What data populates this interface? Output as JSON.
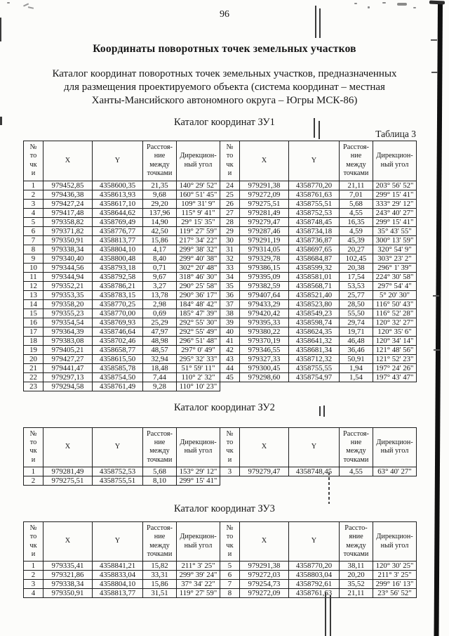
{
  "page": {
    "number": "96"
  },
  "title": "Координаты поворотных точек земельных участков",
  "intro": {
    "lines": [
      "Каталог координат поворотных точек земельных участков, предназначенных",
      "для размещения проектируемого объекта (система координат – местная",
      "Ханты-Мансийского автономного округа – Югры МСК-86)"
    ]
  },
  "tables": [
    {
      "caption": "Каталог координат ЗУ1",
      "label": "Таблица 3",
      "headers": [
        "№\nто\nчк\nи",
        "X",
        "Y",
        "Расстоя-\nние\nмежду\nточками",
        "Дирекцион-\nный угол",
        "№\nто\nчк\nи",
        "X",
        "Y",
        "Расстоя-\nние\nмежду\nточками",
        "Дирекцион-\nный угол"
      ],
      "rows": [
        [
          "1",
          "979452,85",
          "4358600,35",
          "21,35",
          "140° 29' 52\"",
          "24",
          "979291,38",
          "4358770,20",
          "21,11",
          "203° 56' 52\""
        ],
        [
          "2",
          "979436,38",
          "4358613,93",
          "9,68",
          "160° 51' 45\"",
          "25",
          "979272,09",
          "4358761,63",
          "7,01",
          "299° 15' 41\""
        ],
        [
          "3",
          "979427,24",
          "4358617,10",
          "29,20",
          "109° 31' 9\"",
          "26",
          "979275,51",
          "4358755,51",
          "5,68",
          "333° 29' 12\""
        ],
        [
          "4",
          "979417,48",
          "4358644,62",
          "137,96",
          "115° 9' 41\"",
          "27",
          "979281,49",
          "4358752,53",
          "4,55",
          "243° 40' 27\""
        ],
        [
          "5",
          "979358,82",
          "4358769,49",
          "14,90",
          "29° 15' 35\"",
          "28",
          "979279,47",
          "4358748,45",
          "16,35",
          "299° 15' 41\""
        ],
        [
          "6",
          "979371,82",
          "4358776,77",
          "42,50",
          "119° 27' 59\"",
          "29",
          "979287,46",
          "4358734,18",
          "4,59",
          "35° 43' 55\""
        ],
        [
          "7",
          "979350,91",
          "4358813,77",
          "15,86",
          "217° 34' 22\"",
          "30",
          "979291,19",
          "4358736,87",
          "45,39",
          "300° 13' 59\""
        ],
        [
          "8",
          "979338,34",
          "4358804,10",
          "4,17",
          "299° 38' 32\"",
          "31",
          "979314,05",
          "4358697,65",
          "20,27",
          "320° 54' 9\""
        ],
        [
          "9",
          "979340,40",
          "4358800,48",
          "8,40",
          "299° 40' 38\"",
          "32",
          "979329,78",
          "4358684,87",
          "102,45",
          "303° 23' 2\""
        ],
        [
          "10",
          "979344,56",
          "4358793,18",
          "0,71",
          "302° 20' 48\"",
          "33",
          "979386,15",
          "4358599,32",
          "20,38",
          "296° 1' 39\""
        ],
        [
          "11",
          "979344,94",
          "4358792,58",
          "9,67",
          "318° 46' 30\"",
          "34",
          "979395,09",
          "4358581,01",
          "17,54",
          "224° 30' 58\""
        ],
        [
          "12",
          "979352,21",
          "4358786,21",
          "3,27",
          "290° 25' 58\"",
          "35",
          "979382,59",
          "4358568,71",
          "53,53",
          "297° 54' 4\""
        ],
        [
          "13",
          "979353,35",
          "4358783,15",
          "13,78",
          "290° 36' 17\"",
          "36",
          "979407,64",
          "4358521,40",
          "25,77",
          "5° 20' 30\""
        ],
        [
          "14",
          "979358,20",
          "4358770,25",
          "2,98",
          "184° 48' 42\"",
          "37",
          "979433,29",
          "4358523,80",
          "28,50",
          "116° 50' 43\""
        ],
        [
          "15",
          "979355,23",
          "4358770,00",
          "0,69",
          "185° 47' 39\"",
          "38",
          "979420,42",
          "4358549,23",
          "55,50",
          "116° 52' 28\""
        ],
        [
          "16",
          "979354,54",
          "4358769,93",
          "25,29",
          "292° 55' 30\"",
          "39",
          "979395,33",
          "4358598,74",
          "29,74",
          "120° 32' 27\""
        ],
        [
          "17",
          "979364,39",
          "4358746,64",
          "47,97",
          "292° 55' 49\"",
          "40",
          "979380,22",
          "4358624,35",
          "19,71",
          "120° 35' 6\""
        ],
        [
          "18",
          "979383,08",
          "4358702,46",
          "48,98",
          "296° 51' 48\"",
          "41",
          "979370,19",
          "4358641,32",
          "46,48",
          "120° 34' 14\""
        ],
        [
          "19",
          "979405,21",
          "4358658,77",
          "48,57",
          "297° 0' 49\"",
          "42",
          "979346,55",
          "4358681,34",
          "36,46",
          "121° 48' 56\""
        ],
        [
          "20",
          "979427,27",
          "4358615,50",
          "32,94",
          "295° 32' 33\"",
          "43",
          "979327,33",
          "4358712,32",
          "50,91",
          "121° 52' 23\""
        ],
        [
          "21",
          "979441,47",
          "4358585,78",
          "18,48",
          "51° 59' 11\"",
          "44",
          "979300,45",
          "4358755,55",
          "1,94",
          "197° 24' 26\""
        ],
        [
          "22",
          "979297,13",
          "4358754,50",
          "7,44",
          "110° 2' 32\"",
          "45",
          "979298,60",
          "4358754,97",
          "1,54",
          "197° 43' 47\""
        ],
        [
          "23",
          "979294,58",
          "4358761,49",
          "9,28",
          "110° 10' 23\"",
          null,
          null,
          null,
          null,
          null
        ]
      ]
    },
    {
      "caption": "Каталог координат ЗУ2",
      "label": "",
      "headers": [
        "№\nто\nчк\nи",
        "X",
        "Y",
        "Расстоя-\nние\nмежду\nточками",
        "Дирекцион-\nный угол",
        "№\nто\nчк\nи",
        "X",
        "Y",
        "Расстоя-\nние\nмежду\nточками",
        "Дирекцион-\nный угол"
      ],
      "rows": [
        [
          "1",
          "979281,49",
          "4358752,53",
          "5,68",
          "153° 29' 12\"",
          "3",
          "979279,47",
          "4358748,45",
          "4,55",
          "63° 40' 27\""
        ],
        [
          "2",
          "979275,51",
          "4358755,51",
          "8,10",
          "299° 15' 41\"",
          null,
          null,
          null,
          null,
          null
        ]
      ]
    },
    {
      "caption": "Каталог координат ЗУ3",
      "label": "",
      "headers": [
        "№\nто\nчк\nи",
        "X",
        "Y",
        "Расстоя-\nние\nмежду\nточками",
        "Дирекцион-\nный угол",
        "№\nто\nчк\nи",
        "X",
        "Y",
        "Рассто-\nяние\nмежду\nточками",
        "Дирекцион-\nный угол"
      ],
      "rows": [
        [
          "1",
          "979335,41",
          "4358841,21",
          "15,82",
          "211° 3' 25\"",
          "5",
          "979291,38",
          "4358770,20",
          "38,11",
          "120° 30' 25\""
        ],
        [
          "2",
          "979321,86",
          "4358833,04",
          "33,31",
          "299° 39' 24\"",
          "6",
          "979272,03",
          "4358803,04",
          "20,20",
          "211° 3' 25\""
        ],
        [
          "3",
          "979338,34",
          "4358804,10",
          "15,86",
          "37° 34' 22\"",
          "7",
          "979254,73",
          "4358792,61",
          "35,52",
          "299° 16' 13\""
        ],
        [
          "4",
          "979350,91",
          "4358813,77",
          "31,51",
          "119° 27' 59\"",
          "8",
          "979272,09",
          "4358761,63",
          "21,11",
          "23° 56' 52\""
        ]
      ]
    }
  ]
}
